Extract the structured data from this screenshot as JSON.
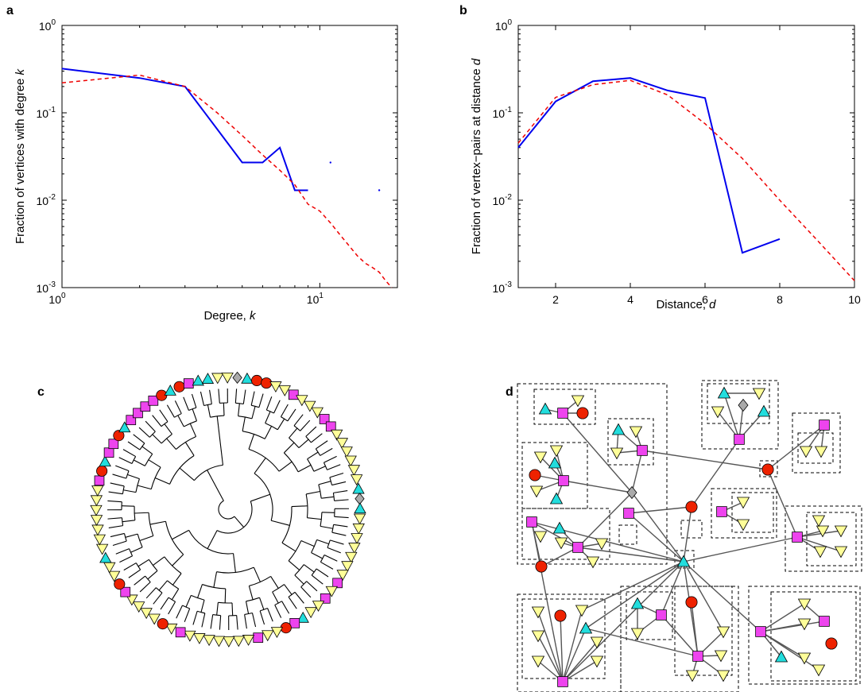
{
  "panel_labels": {
    "a": "a",
    "b": "b",
    "c": "c",
    "d": "d"
  },
  "colors": {
    "observed": "#0000ee",
    "model": "#ee0000",
    "triangle_up": "#22dddd",
    "triangle_down": "#ffff99",
    "square": "#ee44ee",
    "circle": "#ee2200",
    "diamond": "#aaaaaa"
  },
  "chart_data": [
    {
      "type": "line",
      "panel": "a",
      "xlabel_text": "Degree, ",
      "xlabel_var": "k",
      "ylabel_text": "Fraction of vertices with degree ",
      "ylabel_var": "k",
      "xscale": "log",
      "yscale": "log",
      "xlim": [
        1,
        20
      ],
      "ylim": [
        0.001,
        1
      ],
      "xticks": [
        {
          "base": "10",
          "exp": "0"
        },
        {
          "base": "10",
          "exp": "1"
        }
      ],
      "yticks": [
        {
          "base": "10",
          "exp": "-3"
        },
        {
          "base": "10",
          "exp": "-2"
        },
        {
          "base": "10",
          "exp": "-1"
        },
        {
          "base": "10",
          "exp": "0"
        }
      ],
      "series": [
        {
          "style": "solid",
          "color": "#0000ee",
          "x": [
            1,
            2,
            3,
            4,
            5,
            6,
            7,
            8,
            9
          ],
          "y": [
            0.32,
            0.25,
            0.2,
            0.065,
            0.027,
            0.027,
            0.04,
            0.013,
            0.013
          ]
        },
        {
          "style": "dash",
          "color": "#ee0000",
          "x": [
            1,
            2,
            3,
            4,
            5,
            6,
            7,
            8,
            9,
            10,
            11,
            12,
            13,
            14,
            15,
            16,
            17,
            18,
            19
          ],
          "y": [
            0.22,
            0.27,
            0.2,
            0.1,
            0.055,
            0.033,
            0.022,
            0.015,
            0.009,
            0.0075,
            0.0055,
            0.004,
            0.003,
            0.0023,
            0.0019,
            0.0017,
            0.0015,
            0.0012,
            0.001
          ]
        },
        {
          "style": "points",
          "color": "#0000ee",
          "x": [
            11,
            17
          ],
          "y": [
            0.027,
            0.013
          ]
        }
      ]
    },
    {
      "type": "line",
      "panel": "b",
      "xlabel_text": "Distance, ",
      "xlabel_var": "d",
      "ylabel_text": "Fraction of vertex−pairs at distance ",
      "ylabel_var": "d",
      "xscale": "linear",
      "yscale": "log",
      "xlim": [
        1,
        10
      ],
      "ylim": [
        0.001,
        1
      ],
      "xticks": [
        {
          "v": 2,
          "label": "2"
        },
        {
          "v": 4,
          "label": "4"
        },
        {
          "v": 6,
          "label": "6"
        },
        {
          "v": 8,
          "label": "8"
        },
        {
          "v": 10,
          "label": "10"
        }
      ],
      "yticks": [
        {
          "base": "10",
          "exp": "-3"
        },
        {
          "base": "10",
          "exp": "-2"
        },
        {
          "base": "10",
          "exp": "-1"
        },
        {
          "base": "10",
          "exp": "0"
        }
      ],
      "series": [
        {
          "style": "solid",
          "color": "#0000ee",
          "x": [
            1,
            2,
            3,
            4,
            5,
            6,
            7,
            8
          ],
          "y": [
            0.04,
            0.135,
            0.23,
            0.25,
            0.18,
            0.148,
            0.0025,
            0.0036
          ]
        },
        {
          "style": "dash",
          "color": "#ee0000",
          "x": [
            1,
            2,
            3,
            4,
            5,
            6,
            7,
            8,
            9,
            10
          ],
          "y": [
            0.045,
            0.15,
            0.21,
            0.235,
            0.16,
            0.075,
            0.03,
            0.01,
            0.0035,
            0.0012
          ]
        }
      ]
    }
  ]
}
